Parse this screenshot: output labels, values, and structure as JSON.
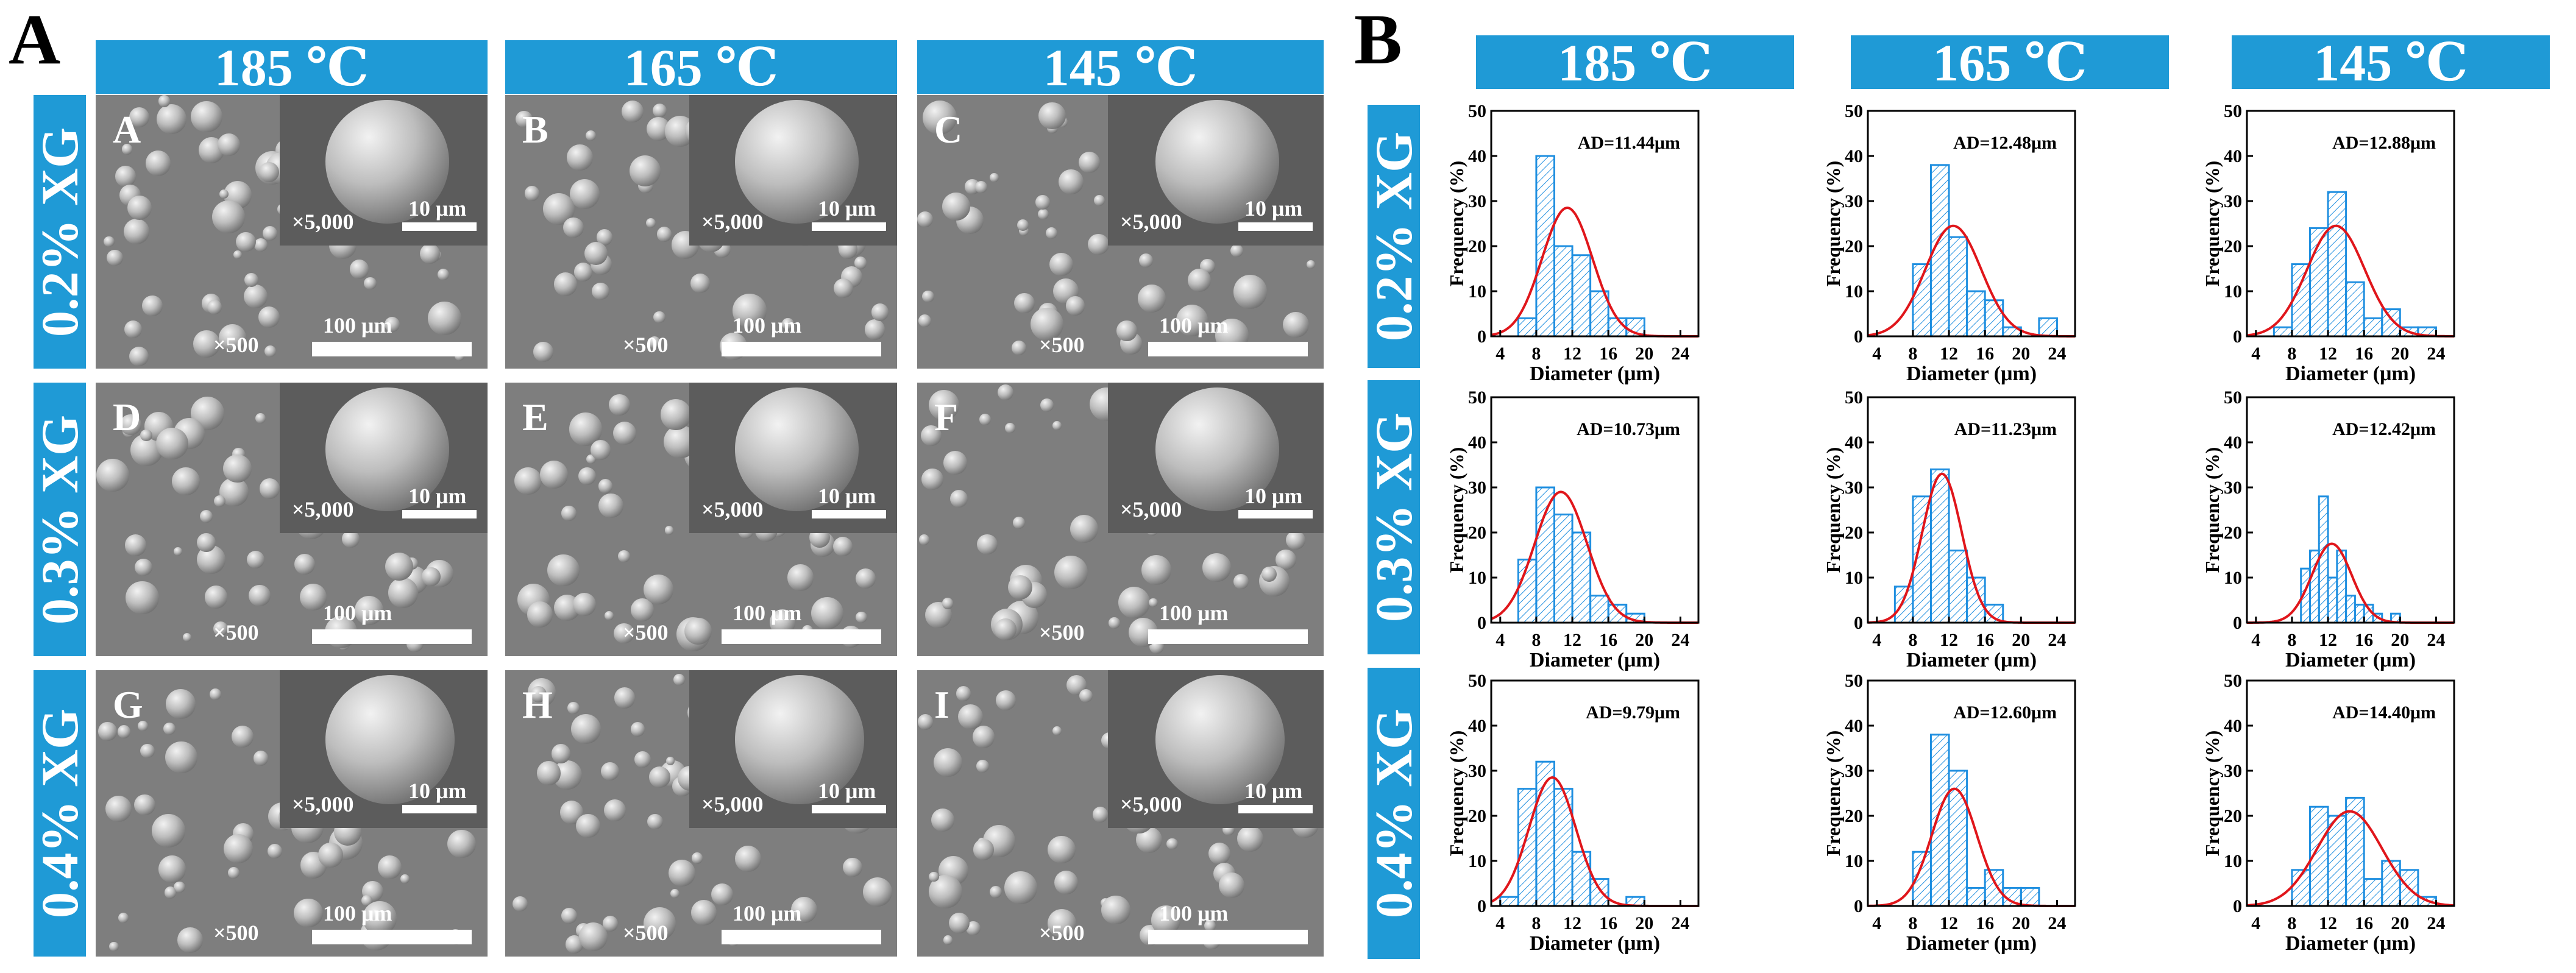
{
  "panel_a": {
    "letter": "A",
    "columns": [
      "185 ℃",
      "165 ℃",
      "145 ℃"
    ],
    "rows": [
      "0.2% XG",
      "0.3% XG",
      "0.4% XG"
    ],
    "images": [
      {
        "letter": "A",
        "inset_mag": "×5,000",
        "inset_scale": "10 μm",
        "mag": "×500",
        "scale": "100 μm"
      },
      {
        "letter": "B",
        "inset_mag": "×5,000",
        "inset_scale": "10 μm",
        "mag": "×500",
        "scale": "100 μm"
      },
      {
        "letter": "C",
        "inset_mag": "×5,000",
        "inset_scale": "10 μm",
        "mag": "×500",
        "scale": "100 μm"
      },
      {
        "letter": "D",
        "inset_mag": "×5,000",
        "inset_scale": "10 μm",
        "mag": "×500",
        "scale": "100 μm"
      },
      {
        "letter": "E",
        "inset_mag": "×5,000",
        "inset_scale": "10 μm",
        "mag": "×500",
        "scale": "100 μm"
      },
      {
        "letter": "F",
        "inset_mag": "×5,000",
        "inset_scale": "10 μm",
        "mag": "×500",
        "scale": "100 μm"
      },
      {
        "letter": "G",
        "inset_mag": "×5,000",
        "inset_scale": "10 μm",
        "mag": "×500",
        "scale": "100 μm"
      },
      {
        "letter": "H",
        "inset_mag": "×5,000",
        "inset_scale": "10 μm",
        "mag": "×500",
        "scale": "100 μm"
      },
      {
        "letter": "I",
        "inset_mag": "×5,000",
        "inset_scale": "10 μm",
        "mag": "×500",
        "scale": "100 μm"
      }
    ]
  },
  "panel_b": {
    "letter": "B",
    "columns": [
      "185 ℃",
      "165 ℃",
      "145 ℃"
    ],
    "rows": [
      "0.2% XG",
      "0.3% XG",
      "0.4% XG"
    ]
  },
  "colors": {
    "header_blue": "#1f9ad6",
    "bar_blue": "#1f8fe0",
    "fit_red": "#e0161b"
  },
  "chart_data": [
    {
      "type": "bar",
      "id": "h-02-185",
      "annotation": "AD=11.44μm",
      "xlabel": "Diameter (μm)",
      "ylabel": "Frequency (%)",
      "xlim": [
        3,
        26
      ],
      "ylim": [
        0,
        50
      ],
      "xticks": [
        4,
        8,
        12,
        16,
        20,
        24
      ],
      "yticks": [
        0,
        10,
        20,
        30,
        40,
        50
      ],
      "bins": [
        [
          6,
          8
        ],
        [
          8,
          10
        ],
        [
          10,
          12
        ],
        [
          12,
          14
        ],
        [
          14,
          16
        ],
        [
          16,
          18
        ],
        [
          18,
          20
        ]
      ],
      "values": [
        4,
        40,
        20,
        18,
        10,
        4,
        4
      ],
      "fit": {
        "type": "gaussian",
        "mean": 11.44,
        "peak": 28.5,
        "sigma": 2.8
      }
    },
    {
      "type": "bar",
      "id": "h-02-165",
      "annotation": "AD=12.48μm",
      "xlabel": "Diameter (μm)",
      "ylabel": "Frequency (%)",
      "xlim": [
        3,
        26
      ],
      "ylim": [
        0,
        50
      ],
      "xticks": [
        4,
        8,
        12,
        16,
        20,
        24
      ],
      "yticks": [
        0,
        10,
        20,
        30,
        40,
        50
      ],
      "bins": [
        [
          8,
          10
        ],
        [
          10,
          12
        ],
        [
          12,
          14
        ],
        [
          14,
          16
        ],
        [
          16,
          18
        ],
        [
          18,
          20
        ],
        [
          22,
          24
        ]
      ],
      "values": [
        16,
        38,
        22,
        10,
        8,
        2,
        4
      ],
      "fit": {
        "type": "gaussian",
        "mean": 12.48,
        "peak": 24.5,
        "sigma": 3.1
      }
    },
    {
      "type": "bar",
      "id": "h-02-145",
      "annotation": "AD=12.88μm",
      "xlabel": "Diameter (μm)",
      "ylabel": "Frequency (%)",
      "xlim": [
        3,
        26
      ],
      "ylim": [
        0,
        50
      ],
      "xticks": [
        4,
        8,
        12,
        16,
        20,
        24
      ],
      "yticks": [
        0,
        10,
        20,
        30,
        40,
        50
      ],
      "bins": [
        [
          6,
          8
        ],
        [
          8,
          10
        ],
        [
          10,
          12
        ],
        [
          12,
          14
        ],
        [
          14,
          16
        ],
        [
          16,
          18
        ],
        [
          18,
          20
        ],
        [
          20,
          22
        ],
        [
          22,
          24
        ]
      ],
      "values": [
        2,
        16,
        24,
        32,
        12,
        4,
        6,
        2,
        2
      ],
      "fit": {
        "type": "gaussian",
        "mean": 12.88,
        "peak": 24.5,
        "sigma": 3.2
      }
    },
    {
      "type": "bar",
      "id": "h-03-185",
      "annotation": "AD=10.73μm",
      "xlabel": "Diameter (μm)",
      "ylabel": "Frequency (%)",
      "xlim": [
        3,
        26
      ],
      "ylim": [
        0,
        50
      ],
      "xticks": [
        4,
        8,
        12,
        16,
        20,
        24
      ],
      "yticks": [
        0,
        10,
        20,
        30,
        40,
        50
      ],
      "bins": [
        [
          6,
          8
        ],
        [
          8,
          10
        ],
        [
          10,
          12
        ],
        [
          12,
          14
        ],
        [
          14,
          16
        ],
        [
          16,
          18
        ],
        [
          18,
          20
        ]
      ],
      "values": [
        14,
        30,
        24,
        20,
        6,
        4,
        2
      ],
      "fit": {
        "type": "gaussian",
        "mean": 10.73,
        "peak": 29,
        "sigma": 2.9
      }
    },
    {
      "type": "bar",
      "id": "h-03-165",
      "annotation": "AD=11.23μm",
      "xlabel": "Diameter (μm)",
      "ylabel": "Frequency (%)",
      "xlim": [
        3,
        26
      ],
      "ylim": [
        0,
        50
      ],
      "xticks": [
        4,
        8,
        12,
        16,
        20,
        24
      ],
      "yticks": [
        0,
        10,
        20,
        30,
        40,
        50
      ],
      "bins": [
        [
          6,
          8
        ],
        [
          8,
          10
        ],
        [
          10,
          12
        ],
        [
          12,
          14
        ],
        [
          14,
          16
        ],
        [
          16,
          18
        ]
      ],
      "values": [
        8,
        28,
        34,
        16,
        10,
        4
      ],
      "fit": {
        "type": "gaussian",
        "mean": 11.23,
        "peak": 33,
        "sigma": 2.2
      }
    },
    {
      "type": "bar",
      "id": "h-03-145",
      "annotation": "AD=12.42μm",
      "xlabel": "Diameter (μm)",
      "ylabel": "Frequency (%)",
      "xlim": [
        3,
        26
      ],
      "ylim": [
        0,
        50
      ],
      "xticks": [
        4,
        8,
        12,
        16,
        20,
        24
      ],
      "yticks": [
        0,
        10,
        20,
        30,
        40,
        50
      ],
      "bins": [
        [
          9,
          10
        ],
        [
          10,
          11
        ],
        [
          11,
          12
        ],
        [
          12,
          13
        ],
        [
          13,
          14
        ],
        [
          14,
          15
        ],
        [
          15,
          16
        ],
        [
          16,
          17
        ],
        [
          17,
          18
        ],
        [
          19,
          20
        ]
      ],
      "values": [
        12,
        16,
        28,
        10,
        16,
        6,
        4,
        4,
        2,
        2
      ],
      "fit": {
        "type": "gaussian",
        "mean": 12.42,
        "peak": 17.5,
        "sigma": 2.2
      }
    },
    {
      "type": "bar",
      "id": "h-04-185",
      "annotation": "AD=9.79μm",
      "xlabel": "Diameter (μm)",
      "ylabel": "Frequency (%)",
      "xlim": [
        3,
        26
      ],
      "ylim": [
        0,
        50
      ],
      "xticks": [
        4,
        8,
        12,
        16,
        20,
        24
      ],
      "yticks": [
        0,
        10,
        20,
        30,
        40,
        50
      ],
      "bins": [
        [
          4,
          6
        ],
        [
          6,
          8
        ],
        [
          8,
          10
        ],
        [
          10,
          12
        ],
        [
          12,
          14
        ],
        [
          14,
          16
        ],
        [
          18,
          20
        ]
      ],
      "values": [
        2,
        26,
        32,
        26,
        12,
        6,
        2
      ],
      "fit": {
        "type": "gaussian",
        "mean": 9.79,
        "peak": 28.5,
        "sigma": 2.6
      }
    },
    {
      "type": "bar",
      "id": "h-04-165",
      "annotation": "AD=12.60μm",
      "xlabel": "Diameter (μm)",
      "ylabel": "Frequency (%)",
      "xlim": [
        3,
        26
      ],
      "ylim": [
        0,
        50
      ],
      "xticks": [
        4,
        8,
        12,
        16,
        20,
        24
      ],
      "yticks": [
        0,
        10,
        20,
        30,
        40,
        50
      ],
      "bins": [
        [
          8,
          10
        ],
        [
          10,
          12
        ],
        [
          12,
          14
        ],
        [
          14,
          16
        ],
        [
          16,
          18
        ],
        [
          18,
          20
        ],
        [
          20,
          22
        ]
      ],
      "values": [
        12,
        38,
        30,
        4,
        8,
        4,
        4
      ],
      "fit": {
        "type": "gaussian",
        "mean": 12.6,
        "peak": 26,
        "sigma": 2.5
      }
    },
    {
      "type": "bar",
      "id": "h-04-145",
      "annotation": "AD=14.40μm",
      "xlabel": "Diameter (μm)",
      "ylabel": "Frequency (%)",
      "xlim": [
        3,
        26
      ],
      "ylim": [
        0,
        50
      ],
      "xticks": [
        4,
        8,
        12,
        16,
        20,
        24
      ],
      "yticks": [
        0,
        10,
        20,
        30,
        40,
        50
      ],
      "bins": [
        [
          8,
          10
        ],
        [
          10,
          12
        ],
        [
          12,
          14
        ],
        [
          14,
          16
        ],
        [
          16,
          18
        ],
        [
          18,
          20
        ],
        [
          20,
          22
        ],
        [
          22,
          24
        ]
      ],
      "values": [
        8,
        22,
        20,
        24,
        6,
        10,
        8,
        2
      ],
      "fit": {
        "type": "gaussian",
        "mean": 14.4,
        "peak": 21,
        "sigma": 3.6
      }
    }
  ]
}
